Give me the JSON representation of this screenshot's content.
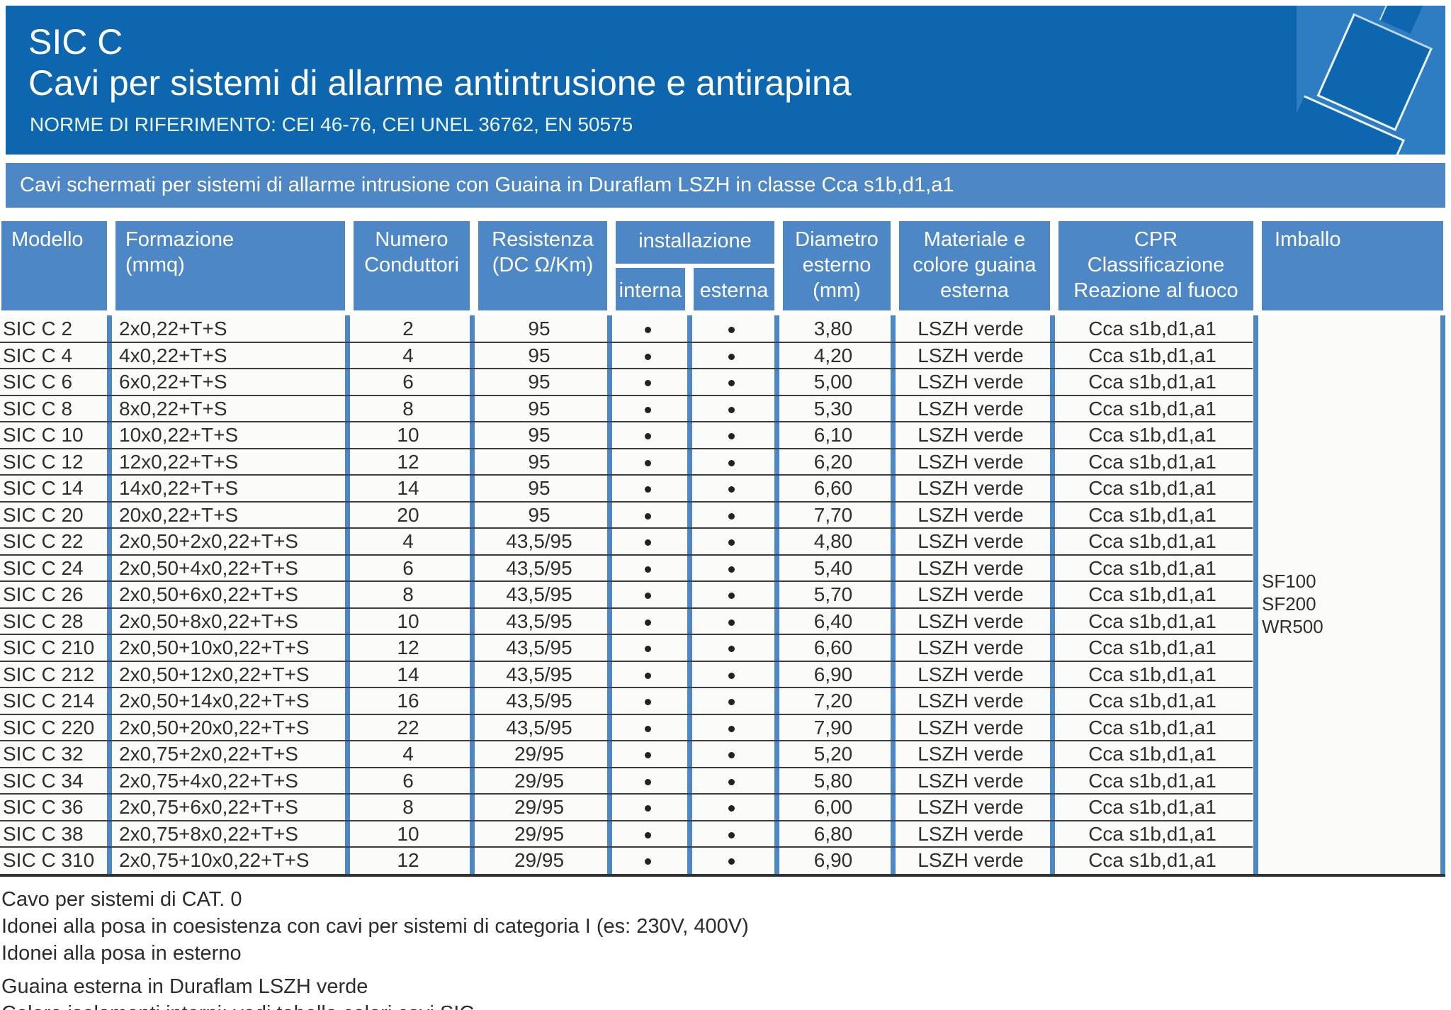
{
  "colors": {
    "header_blue": "#0e67ae",
    "panel_blue": "#4e87c5",
    "icon_bg_blue": "#2e7cc2",
    "row_bg": "#fbfbf9",
    "line_dark": "#3d3d3d",
    "text_dark": "#2f2f2f",
    "text_white": "#ffffff"
  },
  "header": {
    "product": "SIC C",
    "title": "Cavi per sistemi di allarme antintrusione e antirapina",
    "norms": "NORME DI RIFERIMENTO: CEI 46-76, CEI UNEL 36762, EN 50575",
    "icon": "cable-connector-icon"
  },
  "band": {
    "text": "Cavi schermati per sistemi di allarme intrusione con Guaina in Duraflam LSZH in classe Cca s1b,d1,a1"
  },
  "table": {
    "columns": {
      "modello": "Modello",
      "formazione": "Formazione\n(mmq)",
      "numero": "Numero\nConduttori",
      "resistenza": "Resistenza\n(DC Ω/Km)",
      "installazione": "installazione",
      "interna": "interna",
      "esterna": "esterna",
      "diametro": "Diametro\nesterno\n(mm)",
      "materiale": "Materiale e\ncolore guaina\nesterna",
      "cpr": "CPR\nClassificazione\nReazione al fuoco",
      "imballo": "Imballo"
    },
    "rows": [
      {
        "modello": "SIC C 2",
        "formazione": "2x0,22+T+S",
        "numero": "2",
        "resistenza": "95",
        "interna": true,
        "esterna": true,
        "diametro": "3,80",
        "materiale": "LSZH verde",
        "cpr": "Cca s1b,d1,a1"
      },
      {
        "modello": "SIC C 4",
        "formazione": "4x0,22+T+S",
        "numero": "4",
        "resistenza": "95",
        "interna": true,
        "esterna": true,
        "diametro": "4,20",
        "materiale": "LSZH verde",
        "cpr": "Cca s1b,d1,a1"
      },
      {
        "modello": "SIC C 6",
        "formazione": "6x0,22+T+S",
        "numero": "6",
        "resistenza": "95",
        "interna": true,
        "esterna": true,
        "diametro": "5,00",
        "materiale": "LSZH verde",
        "cpr": "Cca s1b,d1,a1"
      },
      {
        "modello": "SIC C 8",
        "formazione": "8x0,22+T+S",
        "numero": "8",
        "resistenza": "95",
        "interna": true,
        "esterna": true,
        "diametro": "5,30",
        "materiale": "LSZH verde",
        "cpr": "Cca s1b,d1,a1"
      },
      {
        "modello": "SIC C 10",
        "formazione": "10x0,22+T+S",
        "numero": "10",
        "resistenza": "95",
        "interna": true,
        "esterna": true,
        "diametro": "6,10",
        "materiale": "LSZH verde",
        "cpr": "Cca s1b,d1,a1"
      },
      {
        "modello": "SIC C 12",
        "formazione": "12x0,22+T+S",
        "numero": "12",
        "resistenza": "95",
        "interna": true,
        "esterna": true,
        "diametro": "6,20",
        "materiale": "LSZH verde",
        "cpr": "Cca s1b,d1,a1"
      },
      {
        "modello": "SIC C 14",
        "formazione": "14x0,22+T+S",
        "numero": "14",
        "resistenza": "95",
        "interna": true,
        "esterna": true,
        "diametro": "6,60",
        "materiale": "LSZH verde",
        "cpr": "Cca s1b,d1,a1"
      },
      {
        "modello": "SIC C 20",
        "formazione": "20x0,22+T+S",
        "numero": "20",
        "resistenza": "95",
        "interna": true,
        "esterna": true,
        "diametro": "7,70",
        "materiale": "LSZH verde",
        "cpr": "Cca s1b,d1,a1"
      },
      {
        "modello": "SIC C 22",
        "formazione": "2x0,50+2x0,22+T+S",
        "numero": "4",
        "resistenza": "43,5/95",
        "interna": true,
        "esterna": true,
        "diametro": "4,80",
        "materiale": "LSZH verde",
        "cpr": "Cca s1b,d1,a1"
      },
      {
        "modello": "SIC C 24",
        "formazione": "2x0,50+4x0,22+T+S",
        "numero": "6",
        "resistenza": "43,5/95",
        "interna": true,
        "esterna": true,
        "diametro": "5,40",
        "materiale": "LSZH verde",
        "cpr": "Cca s1b,d1,a1"
      },
      {
        "modello": "SIC C 26",
        "formazione": "2x0,50+6x0,22+T+S",
        "numero": "8",
        "resistenza": "43,5/95",
        "interna": true,
        "esterna": true,
        "diametro": "5,70",
        "materiale": "LSZH verde",
        "cpr": "Cca s1b,d1,a1"
      },
      {
        "modello": "SIC C 28",
        "formazione": "2x0,50+8x0,22+T+S",
        "numero": "10",
        "resistenza": "43,5/95",
        "interna": true,
        "esterna": true,
        "diametro": "6,40",
        "materiale": "LSZH verde",
        "cpr": "Cca s1b,d1,a1"
      },
      {
        "modello": "SIC C 210",
        "formazione": "2x0,50+10x0,22+T+S",
        "numero": "12",
        "resistenza": "43,5/95",
        "interna": true,
        "esterna": true,
        "diametro": "6,60",
        "materiale": "LSZH verde",
        "cpr": "Cca s1b,d1,a1"
      },
      {
        "modello": "SIC C 212",
        "formazione": "2x0,50+12x0,22+T+S",
        "numero": "14",
        "resistenza": "43,5/95",
        "interna": true,
        "esterna": true,
        "diametro": "6,90",
        "materiale": "LSZH verde",
        "cpr": "Cca s1b,d1,a1"
      },
      {
        "modello": "SIC C 214",
        "formazione": "2x0,50+14x0,22+T+S",
        "numero": "16",
        "resistenza": "43,5/95",
        "interna": true,
        "esterna": true,
        "diametro": "7,20",
        "materiale": "LSZH verde",
        "cpr": "Cca s1b,d1,a1"
      },
      {
        "modello": "SIC C 220",
        "formazione": "2x0,50+20x0,22+T+S",
        "numero": "22",
        "resistenza": "43,5/95",
        "interna": true,
        "esterna": true,
        "diametro": "7,90",
        "materiale": "LSZH verde",
        "cpr": "Cca s1b,d1,a1"
      },
      {
        "modello": "SIC C 32",
        "formazione": "2x0,75+2x0,22+T+S",
        "numero": "4",
        "resistenza": "29/95",
        "interna": true,
        "esterna": true,
        "diametro": "5,20",
        "materiale": "LSZH verde",
        "cpr": "Cca s1b,d1,a1"
      },
      {
        "modello": "SIC C 34",
        "formazione": "2x0,75+4x0,22+T+S",
        "numero": "6",
        "resistenza": "29/95",
        "interna": true,
        "esterna": true,
        "diametro": "5,80",
        "materiale": "LSZH verde",
        "cpr": "Cca s1b,d1,a1"
      },
      {
        "modello": "SIC C 36",
        "formazione": "2x0,75+6x0,22+T+S",
        "numero": "8",
        "resistenza": "29/95",
        "interna": true,
        "esterna": true,
        "diametro": "6,00",
        "materiale": "LSZH verde",
        "cpr": "Cca s1b,d1,a1"
      },
      {
        "modello": "SIC C 38",
        "formazione": "2x0,75+8x0,22+T+S",
        "numero": "10",
        "resistenza": "29/95",
        "interna": true,
        "esterna": true,
        "diametro": "6,80",
        "materiale": "LSZH verde",
        "cpr": "Cca s1b,d1,a1"
      },
      {
        "modello": "SIC C 310",
        "formazione": "2x0,75+10x0,22+T+S",
        "numero": "12",
        "resistenza": "29/95",
        "interna": true,
        "esterna": true,
        "diametro": "6,90",
        "materiale": "LSZH verde",
        "cpr": "Cca s1b,d1,a1"
      }
    ],
    "imballo_values": [
      "SF100",
      "SF200",
      "WR500"
    ]
  },
  "notes": [
    "Cavo per sistemi di CAT. 0",
    "Idonei alla posa in coesistenza con cavi per sistemi di categoria I (es: 230V, 400V)",
    "Idonei alla posa in esterno",
    "Guaina esterna in Duraflam LSZH verde",
    "Colore isolamenti interni: vedi tabella colori cavi SIC"
  ]
}
